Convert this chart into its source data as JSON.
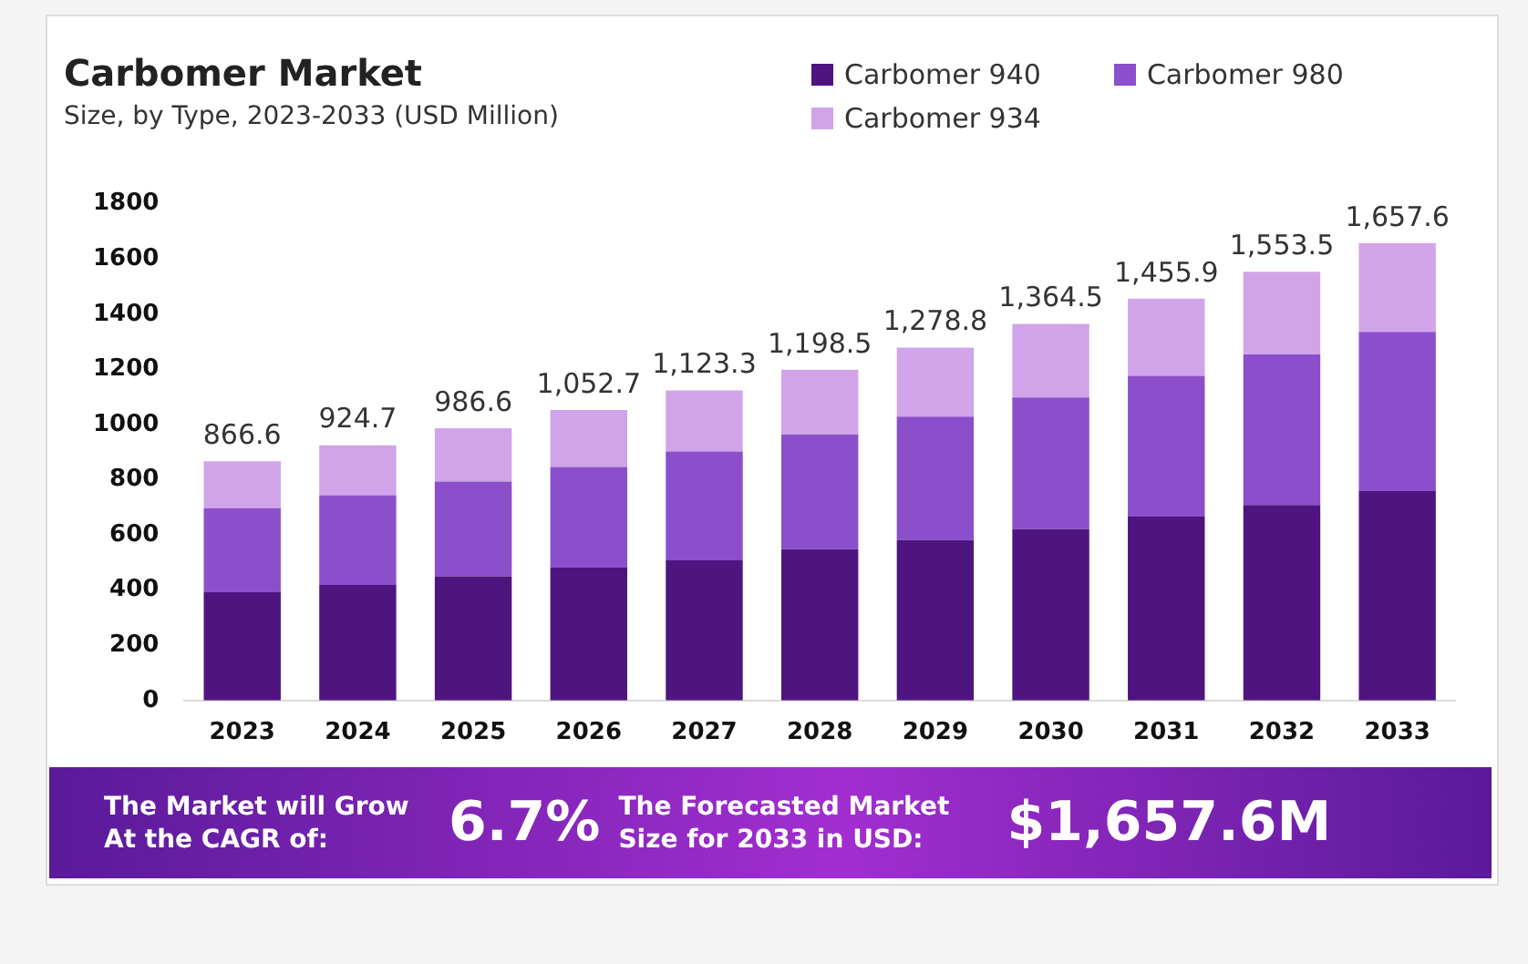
{
  "chart_data": {
    "type": "bar",
    "title": "Carbomer Market",
    "subtitle": "Size, by Type, 2023-2033 (USD Million)",
    "categories": [
      "2023",
      "2024",
      "2025",
      "2026",
      "2027",
      "2028",
      "2029",
      "2030",
      "2031",
      "2032",
      "2033"
    ],
    "series": [
      {
        "name": "Carbomer 940",
        "color": "#4e1580",
        "values": [
          392,
          419,
          450,
          481,
          508,
          548,
          581,
          621,
          666,
          708,
          759
        ]
      },
      {
        "name": "Carbomer 980",
        "color": "#8b4fcc",
        "values": [
          305,
          325,
          343,
          365,
          394,
          416,
          448,
          477,
          510,
          546,
          577
        ]
      },
      {
        "name": "Carbomer 934",
        "color": "#d1a4ea",
        "values": [
          169.6,
          180.7,
          193.6,
          206.7,
          221.3,
          234.5,
          249.8,
          266.5,
          279.9,
          299.5,
          321.6
        ]
      }
    ],
    "stacked": true,
    "totals": [
      "866.6",
      "924.7",
      "986.6",
      "1,052.7",
      "1,123.3",
      "1,198.5",
      "1,278.8",
      "1,364.5",
      "1,455.9",
      "1,553.5",
      "1,657.6"
    ],
    "ylim": [
      0,
      1800
    ],
    "yticks": [
      0,
      200,
      400,
      600,
      800,
      1000,
      1200,
      1400,
      1600,
      1800
    ],
    "grid": false,
    "legend": "top right",
    "annotations": [
      "The Market will Grow At the CAGR of:",
      "6.7%",
      "The Forecasted Market Size for 2033 in USD:",
      "$1,657.6M"
    ]
  }
}
